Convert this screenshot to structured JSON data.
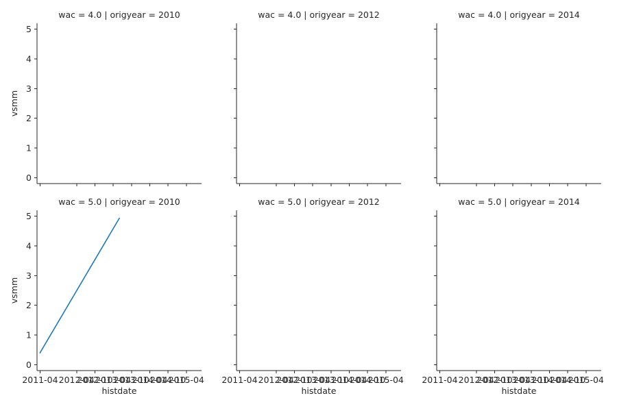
{
  "chart_data": {
    "type": "line",
    "layout": "facet-grid",
    "rows": 2,
    "cols": 3,
    "xlabel": "histdate",
    "ylabel": "vsmm",
    "ylim": [
      -0.2,
      5.2
    ],
    "yticks": [
      0,
      1,
      2,
      3,
      4,
      5
    ],
    "xticks": [
      "2011-04",
      "2012-04",
      "2012-10",
      "2013-04",
      "2013-10",
      "2014-04",
      "2014-10",
      "2015-04"
    ],
    "xlim": [
      "2011-03",
      "2015-09"
    ],
    "line_color": "#1f77b4",
    "panels": [
      {
        "title": "wac = 4.0 | origyear = 2010",
        "x": [],
        "y": []
      },
      {
        "title": "wac = 4.0 | origyear = 2012",
        "x": [],
        "y": []
      },
      {
        "title": "wac = 4.0 | origyear = 2014",
        "x": [],
        "y": []
      },
      {
        "title": "wac = 5.0 | origyear = 2010",
        "x": [
          "2011-04",
          "2013-06"
        ],
        "y": [
          0.4,
          4.93
        ]
      },
      {
        "title": "wac = 5.0 | origyear = 2012",
        "x": [],
        "y": []
      },
      {
        "title": "wac = 5.0 | origyear = 2014",
        "x": [],
        "y": []
      }
    ]
  }
}
